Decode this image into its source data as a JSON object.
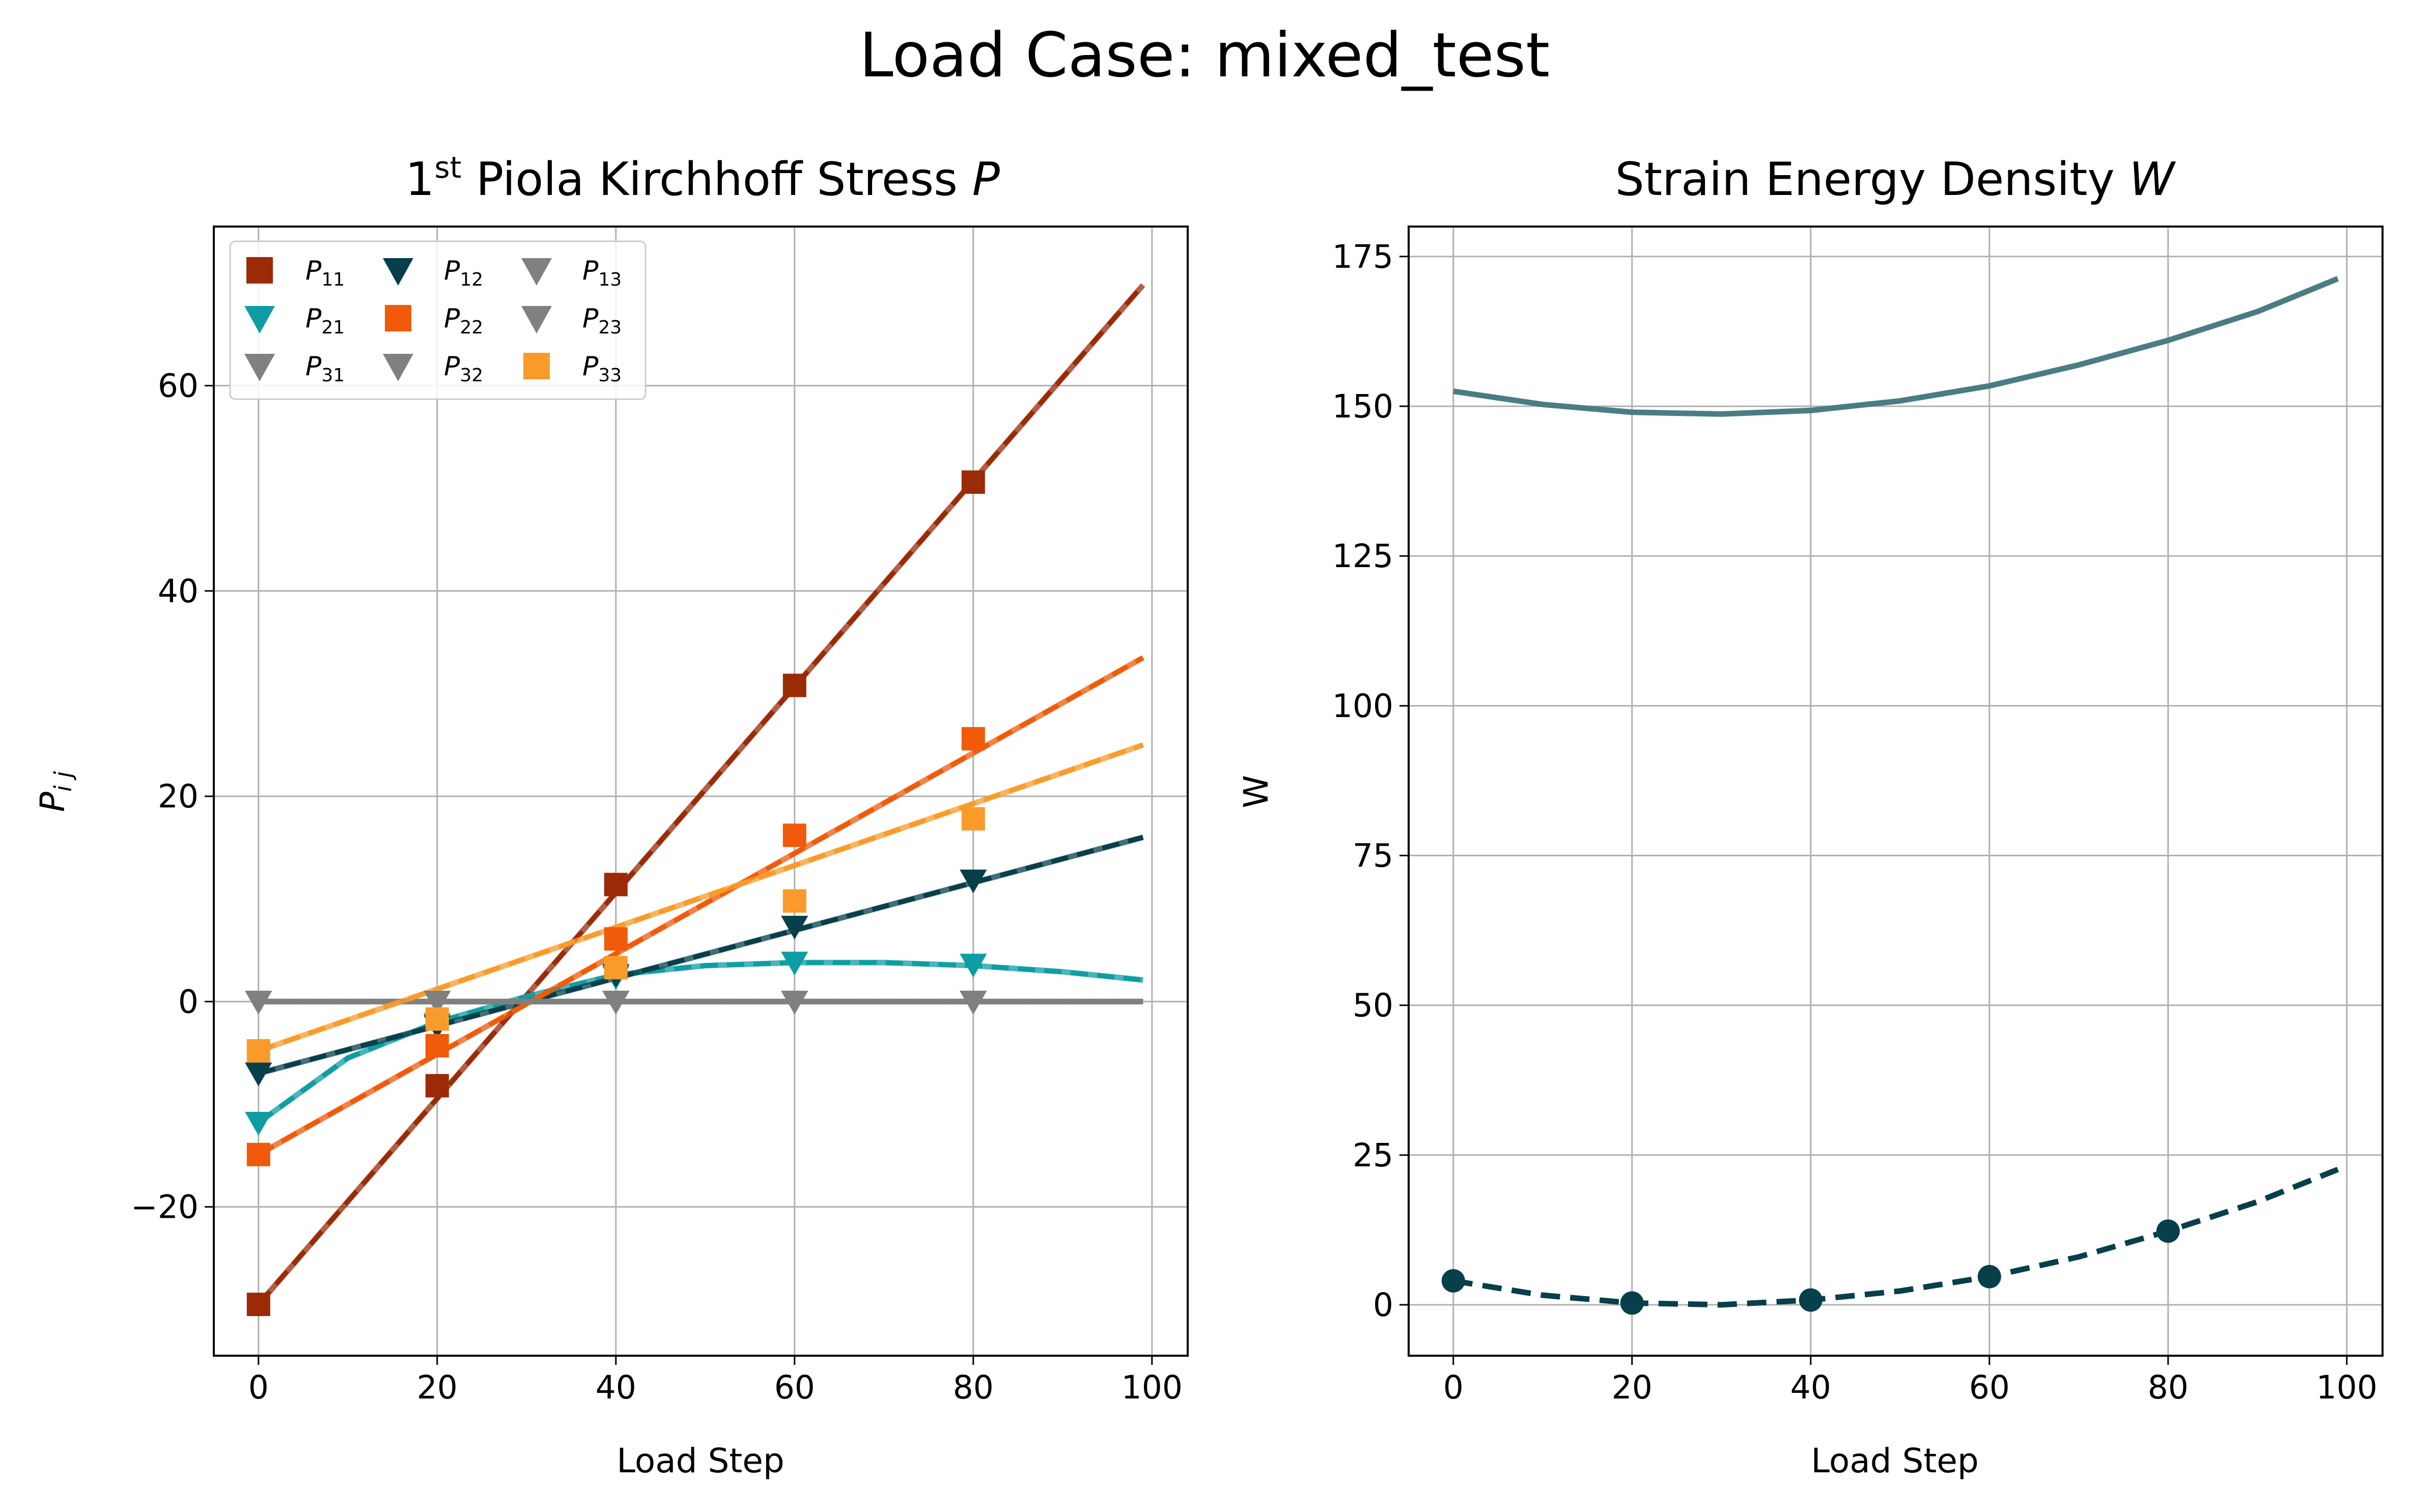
{
  "figure": {
    "suptitle": "Load Case: mixed_test"
  },
  "chart_data": [
    {
      "type": "line",
      "title_prefix": "1",
      "title_superscript": "st",
      "title_text": " Piola Kirchhoff Stress ",
      "title_symbol": "P",
      "xlabel": "Load Step",
      "ylabel_main": "P",
      "ylabel_sub": "i j",
      "xlim": [
        -5,
        104
      ],
      "ylim": [
        -34.5,
        75.5
      ],
      "xticks": [
        0,
        20,
        40,
        60,
        80,
        100
      ],
      "yticks": [
        -20,
        0,
        20,
        40,
        60
      ],
      "grid": true,
      "legend_position": "top-left",
      "legend_columns": 3,
      "marker_x": [
        0,
        20,
        40,
        60,
        80
      ],
      "series": [
        {
          "name": "P",
          "sub": "11",
          "color": "#9b2a06",
          "marker": "square",
          "line_x": [
            0,
            99
          ],
          "line_y": [
            -29.5,
            69.8
          ],
          "markers_y": [
            -29.5,
            -8.2,
            11.4,
            30.8,
            50.6
          ],
          "marker_indices": [
            0,
            1,
            2,
            3,
            4
          ]
        },
        {
          "name": "P",
          "sub": "21",
          "color": "#0e9da2",
          "marker": "triangle",
          "line_x": [
            0,
            10,
            20,
            30,
            40,
            50,
            60,
            70,
            80,
            90,
            99
          ],
          "line_y": [
            -11.8,
            -5.5,
            -2.0,
            0.5,
            2.6,
            3.5,
            3.8,
            3.8,
            3.5,
            2.9,
            2.1
          ],
          "markers_y": [
            -11.8,
            -2.2,
            2.4,
            3.8,
            3.6
          ],
          "marker_indices": [
            0,
            1,
            2,
            3,
            4
          ]
        },
        {
          "name": "P",
          "sub": "31",
          "color": "#808080",
          "marker": "triangle",
          "line_x": [
            0,
            99
          ],
          "line_y": [
            0,
            0
          ],
          "markers_y": [
            0,
            0,
            0,
            0,
            0
          ],
          "marker_indices": [
            0,
            1,
            2,
            3,
            4
          ]
        },
        {
          "name": "P",
          "sub": "12",
          "color": "#073f4a",
          "marker": "triangle",
          "line_x": [
            0,
            99
          ],
          "line_y": [
            -7.0,
            16.0
          ],
          "markers_y": [
            -7.0,
            -2.4,
            2.6,
            7.3,
            11.8
          ],
          "marker_indices": [
            0,
            1,
            2,
            3,
            4
          ]
        },
        {
          "name": "P",
          "sub": "22",
          "color": "#f05a0a",
          "marker": "square",
          "line_x": [
            0,
            99
          ],
          "line_y": [
            -14.9,
            33.5
          ],
          "markers_y": [
            -14.9,
            -4.3,
            6.1,
            16.2,
            25.6
          ],
          "marker_indices": [
            0,
            1,
            2,
            3,
            4
          ]
        },
        {
          "name": "P",
          "sub": "32",
          "color": "#808080",
          "marker": "triangle",
          "line_x": [
            0,
            99
          ],
          "line_y": [
            0,
            0
          ],
          "markers_y": [
            0,
            0,
            0,
            0,
            0
          ],
          "marker_indices": [
            0,
            1,
            2,
            3,
            4
          ]
        },
        {
          "name": "P",
          "sub": "13",
          "color": "#808080",
          "marker": "triangle",
          "line_x": [
            0,
            99
          ],
          "line_y": [
            0,
            0
          ],
          "markers_y": [
            0,
            0,
            0,
            0,
            0
          ],
          "marker_indices": [
            0,
            1,
            2,
            3,
            4
          ]
        },
        {
          "name": "P",
          "sub": "23",
          "color": "#808080",
          "marker": "triangle",
          "line_x": [
            0,
            99
          ],
          "line_y": [
            0,
            0
          ],
          "markers_y": [
            0,
            0,
            0,
            0,
            0
          ],
          "marker_indices": [
            0,
            1,
            2,
            3,
            4
          ]
        },
        {
          "name": "P",
          "sub": "33",
          "color": "#f99b2a",
          "marker": "square",
          "line_x": [
            0,
            99
          ],
          "line_y": [
            -4.8,
            25.0
          ],
          "markers_y": [
            -4.8,
            -1.7,
            3.3,
            9.8,
            17.8
          ],
          "marker_indices": [
            0,
            1,
            2,
            3,
            4
          ]
        }
      ]
    },
    {
      "type": "line",
      "title_text": "Strain Energy Density ",
      "title_symbol": "W",
      "xlabel": "Load Step",
      "ylabel": "W",
      "xlim": [
        -5,
        104
      ],
      "ylim": [
        -8.5,
        180
      ],
      "xticks": [
        0,
        20,
        40,
        60,
        80,
        100
      ],
      "yticks": [
        0,
        25,
        50,
        75,
        100,
        125,
        150,
        175
      ],
      "grid": true,
      "series": [
        {
          "style": "solid",
          "color": "#4a7d83",
          "x": [
            0,
            10,
            20,
            30,
            40,
            50,
            60,
            70,
            80,
            90,
            99
          ],
          "y": [
            152.5,
            150.3,
            149.0,
            148.7,
            149.3,
            150.9,
            153.4,
            156.9,
            161.0,
            165.8,
            171.3
          ]
        },
        {
          "style": "dashed",
          "color": "#073f4a",
          "x": [
            0,
            10,
            20,
            30,
            40,
            50,
            60,
            70,
            80,
            90,
            99
          ],
          "y": [
            4.0,
            1.6,
            0.3,
            0.0,
            0.8,
            2.3,
            4.7,
            8.0,
            12.3,
            17.2,
            22.6
          ],
          "marker_x": [
            0,
            20,
            40,
            60,
            80
          ],
          "marker_y": [
            4.0,
            0.3,
            0.8,
            4.7,
            12.3
          ]
        }
      ]
    }
  ]
}
